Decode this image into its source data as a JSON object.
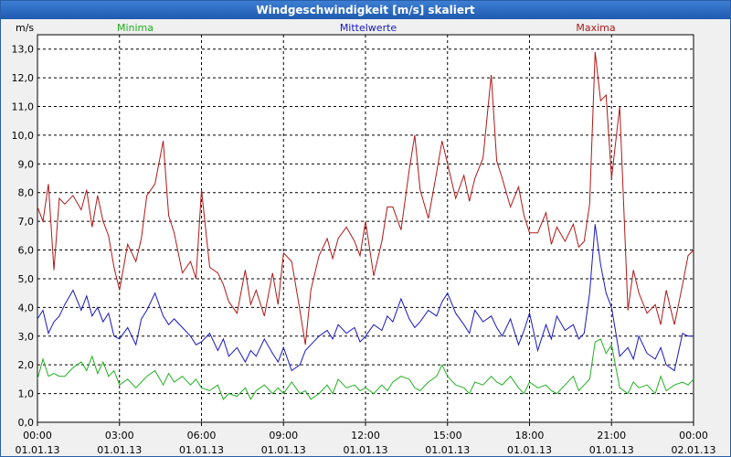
{
  "window": {
    "title": "Windgeschwindigkeit [m/s] skaliert"
  },
  "colors": {
    "minima": "#22b022",
    "mittelwerte": "#1818c0",
    "maxima": "#b01818",
    "grid": "#000000",
    "plot_bg": "#ffffff"
  },
  "chart_data": {
    "type": "line",
    "title": "Windgeschwindigkeit [m/s] skaliert",
    "ylabel": "m/s",
    "ylim": [
      0,
      13.5
    ],
    "yticks": [
      "0,0",
      "1,0",
      "2,0",
      "3,0",
      "4,0",
      "5,0",
      "6,0",
      "7,0",
      "8,0",
      "9,0",
      "10,0",
      "11,0",
      "12,0",
      "13,0"
    ],
    "xticks": [
      {
        "time": "00:00",
        "date": "01.01.13"
      },
      {
        "time": "03:00",
        "date": "01.01.13"
      },
      {
        "time": "06:00",
        "date": "01.01.13"
      },
      {
        "time": "09:00",
        "date": "01.01.13"
      },
      {
        "time": "12:00",
        "date": "01.01.13"
      },
      {
        "time": "15:00",
        "date": "01.01.13"
      },
      {
        "time": "18:00",
        "date": "01.01.13"
      },
      {
        "time": "21:00",
        "date": "01.01.13"
      },
      {
        "time": "00:00",
        "date": "02.01.13"
      }
    ],
    "xlim_hours": [
      0,
      24
    ],
    "grid": true,
    "legend_placement": "top",
    "series": [
      {
        "name": "Minima",
        "x_hours": [
          0,
          0.2,
          0.4,
          0.6,
          0.8,
          1.0,
          1.3,
          1.6,
          1.8,
          2.0,
          2.2,
          2.4,
          2.6,
          2.8,
          3.0,
          3.3,
          3.6,
          3.8,
          4.0,
          4.3,
          4.6,
          4.8,
          5.0,
          5.3,
          5.6,
          5.8,
          6.0,
          6.3,
          6.6,
          6.8,
          7.0,
          7.3,
          7.6,
          7.8,
          8.0,
          8.3,
          8.6,
          8.8,
          9.0,
          9.3,
          9.6,
          9.8,
          10.0,
          10.3,
          10.6,
          10.8,
          11.0,
          11.3,
          11.6,
          11.8,
          12.0,
          12.3,
          12.6,
          12.8,
          13.0,
          13.3,
          13.6,
          13.8,
          14.0,
          14.3,
          14.6,
          14.8,
          15.0,
          15.3,
          15.6,
          15.8,
          16.0,
          16.3,
          16.6,
          16.8,
          17.0,
          17.3,
          17.6,
          17.8,
          18.0,
          18.3,
          18.6,
          18.8,
          19.0,
          19.3,
          19.6,
          19.8,
          20.0,
          20.2,
          20.4,
          20.6,
          20.8,
          21.0,
          21.3,
          21.6,
          21.8,
          22.0,
          22.3,
          22.6,
          22.8,
          23.0,
          23.3,
          23.6,
          23.8,
          24.0
        ],
        "values": [
          1.5,
          2.2,
          1.6,
          1.7,
          1.6,
          1.6,
          1.9,
          2.1,
          1.8,
          2.3,
          1.7,
          2.1,
          1.6,
          1.8,
          1.3,
          1.5,
          1.2,
          1.4,
          1.6,
          1.8,
          1.3,
          1.7,
          1.4,
          1.6,
          1.3,
          1.5,
          1.2,
          1.1,
          1.3,
          0.8,
          1.0,
          0.9,
          1.2,
          0.8,
          1.1,
          1.3,
          1.0,
          1.2,
          1.0,
          1.4,
          1.0,
          1.1,
          0.8,
          1.0,
          1.3,
          1.0,
          1.5,
          1.2,
          1.3,
          1.1,
          1.2,
          1.0,
          1.3,
          1.1,
          1.4,
          1.6,
          1.5,
          1.2,
          1.1,
          1.4,
          1.6,
          2.0,
          1.6,
          1.3,
          1.2,
          1.0,
          1.4,
          1.3,
          1.6,
          1.4,
          1.3,
          1.6,
          1.2,
          1.0,
          1.4,
          1.2,
          1.3,
          1.1,
          1.0,
          1.3,
          1.6,
          1.1,
          1.3,
          1.5,
          2.8,
          2.9,
          2.4,
          2.7,
          1.2,
          1.0,
          1.4,
          1.2,
          1.3,
          1.0,
          1.6,
          1.1,
          1.3,
          1.4,
          1.3,
          1.5
        ]
      },
      {
        "name": "Mittelwerte",
        "x_hours": [
          0,
          0.2,
          0.4,
          0.6,
          0.8,
          1.0,
          1.3,
          1.6,
          1.8,
          2.0,
          2.2,
          2.4,
          2.6,
          2.8,
          3.0,
          3.3,
          3.6,
          3.8,
          4.0,
          4.3,
          4.6,
          4.8,
          5.0,
          5.3,
          5.6,
          5.8,
          6.0,
          6.3,
          6.6,
          6.8,
          7.0,
          7.3,
          7.6,
          7.8,
          8.0,
          8.3,
          8.6,
          8.8,
          9.0,
          9.3,
          9.6,
          9.8,
          10.0,
          10.3,
          10.6,
          10.8,
          11.0,
          11.3,
          11.6,
          11.8,
          12.0,
          12.3,
          12.6,
          12.8,
          13.0,
          13.3,
          13.6,
          13.8,
          14.0,
          14.3,
          14.6,
          14.8,
          15.0,
          15.3,
          15.6,
          15.8,
          16.0,
          16.3,
          16.6,
          16.8,
          17.0,
          17.3,
          17.6,
          17.8,
          18.0,
          18.3,
          18.6,
          18.8,
          19.0,
          19.3,
          19.6,
          19.8,
          20.0,
          20.2,
          20.4,
          20.6,
          20.8,
          21.0,
          21.3,
          21.6,
          21.8,
          22.0,
          22.3,
          22.6,
          22.8,
          23.0,
          23.3,
          23.6,
          23.8,
          24.0
        ],
        "values": [
          3.6,
          3.9,
          3.1,
          3.5,
          3.7,
          4.1,
          4.6,
          3.9,
          4.4,
          3.7,
          4.0,
          3.5,
          3.8,
          3.0,
          2.9,
          3.3,
          2.7,
          3.6,
          3.9,
          4.5,
          3.7,
          3.4,
          3.6,
          3.3,
          3.0,
          2.7,
          2.8,
          3.1,
          2.5,
          2.9,
          2.3,
          2.6,
          2.1,
          2.5,
          2.3,
          2.9,
          2.4,
          2.1,
          2.6,
          1.8,
          2.0,
          2.5,
          2.7,
          3.0,
          3.2,
          2.9,
          3.4,
          3.1,
          3.3,
          2.8,
          3.0,
          3.4,
          3.2,
          3.7,
          3.5,
          4.3,
          3.6,
          3.3,
          3.5,
          3.9,
          3.7,
          4.2,
          4.5,
          3.8,
          3.4,
          3.1,
          3.9,
          3.5,
          3.7,
          3.3,
          3.0,
          3.6,
          2.7,
          3.2,
          3.8,
          2.5,
          3.4,
          2.9,
          3.7,
          3.2,
          3.4,
          2.9,
          3.1,
          4.5,
          6.9,
          5.5,
          4.5,
          4.0,
          2.3,
          2.6,
          2.2,
          3.0,
          2.4,
          2.2,
          2.6,
          2.0,
          1.8,
          3.1,
          3.0,
          3.0
        ]
      },
      {
        "name": "Maxima",
        "x_hours": [
          0,
          0.2,
          0.4,
          0.6,
          0.8,
          1.0,
          1.3,
          1.6,
          1.8,
          2.0,
          2.2,
          2.4,
          2.6,
          2.8,
          3.0,
          3.3,
          3.6,
          3.8,
          4.0,
          4.3,
          4.6,
          4.8,
          5.0,
          5.3,
          5.6,
          5.8,
          6.0,
          6.3,
          6.6,
          6.8,
          7.0,
          7.3,
          7.6,
          7.8,
          8.0,
          8.3,
          8.6,
          8.8,
          9.0,
          9.3,
          9.6,
          9.8,
          10.0,
          10.3,
          10.6,
          10.8,
          11.0,
          11.3,
          11.6,
          11.8,
          12.0,
          12.3,
          12.6,
          12.8,
          13.0,
          13.3,
          13.6,
          13.8,
          14.0,
          14.3,
          14.6,
          14.8,
          15.0,
          15.3,
          15.6,
          15.8,
          16.0,
          16.3,
          16.6,
          16.8,
          17.0,
          17.3,
          17.6,
          17.8,
          18.0,
          18.3,
          18.6,
          18.8,
          19.0,
          19.3,
          19.6,
          19.8,
          20.0,
          20.2,
          20.4,
          20.6,
          20.8,
          21.0,
          21.3,
          21.6,
          21.8,
          22.0,
          22.3,
          22.6,
          22.8,
          23.0,
          23.3,
          23.6,
          23.8,
          24.0
        ],
        "values": [
          7.5,
          7.0,
          8.3,
          5.3,
          7.8,
          7.6,
          7.9,
          7.4,
          8.1,
          6.8,
          7.9,
          7.0,
          6.5,
          5.4,
          4.6,
          6.2,
          5.6,
          6.4,
          7.9,
          8.3,
          9.8,
          7.2,
          6.6,
          5.2,
          5.6,
          5.0,
          8.1,
          5.4,
          5.2,
          4.8,
          4.2,
          3.8,
          5.3,
          4.1,
          4.6,
          3.7,
          5.2,
          4.1,
          5.9,
          5.6,
          3.9,
          2.7,
          4.6,
          5.8,
          6.4,
          5.7,
          6.4,
          6.8,
          6.3,
          5.8,
          7.0,
          5.1,
          6.3,
          7.5,
          7.5,
          6.7,
          8.8,
          10.0,
          8.1,
          7.1,
          8.7,
          9.8,
          9.0,
          7.8,
          8.6,
          7.7,
          8.5,
          9.2,
          12.1,
          9.1,
          8.5,
          7.5,
          8.2,
          7.2,
          6.6,
          6.6,
          7.3,
          6.2,
          6.8,
          6.3,
          6.9,
          6.1,
          6.3,
          7.6,
          12.9,
          11.2,
          11.4,
          8.5,
          11.0,
          3.9,
          5.3,
          4.5,
          3.8,
          4.1,
          3.4,
          4.6,
          3.4,
          4.8,
          5.8,
          6.0
        ]
      }
    ]
  }
}
